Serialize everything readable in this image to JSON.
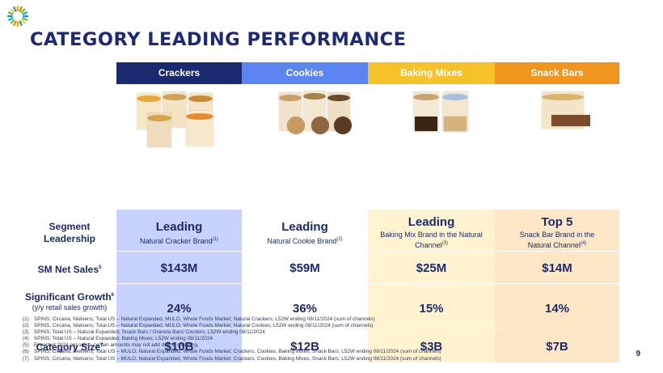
{
  "title": "CATEGORY LEADING PERFORMANCE",
  "headers": [
    {
      "label": "Crackers",
      "color": "#1b2a6e"
    },
    {
      "label": "Cookies",
      "color": "#5b85f0"
    },
    {
      "label": "Baking Mixes",
      "color": "#f6c22a"
    },
    {
      "label": "Snack Bars",
      "color": "#f0961f"
    }
  ],
  "column_bg": [
    "#c8d2ff",
    "#ffffff",
    "#fff4cf",
    "#fde7c6"
  ],
  "row_labels": {
    "segment": "Segment\nLeadership",
    "net_sales": "SM Net Sales",
    "net_sales_sup": "5",
    "growth": "Significant Growth",
    "growth_sup": "6",
    "growth_sub": "(y/y retail sales growth)",
    "category": "Category Size",
    "category_sup": "7"
  },
  "segment": [
    {
      "main": "Leading",
      "sub": "Natural Cracker Brand",
      "sup": "(1)"
    },
    {
      "main": "Leading",
      "sub": "Natural Cookie Brand",
      "sup": "(2)"
    },
    {
      "main": "Leading",
      "sub": "Baking Mix Brand in the Natural Channel",
      "sup": "(3)"
    },
    {
      "main": "Top 5",
      "sub": "Snack Bar Brand in the Natural Channel",
      "sup": "(4)"
    }
  ],
  "net_sales": [
    "$143M",
    "$59M",
    "$25M",
    "$14M"
  ],
  "growth": [
    "24%",
    "36%",
    "15%",
    "14%"
  ],
  "category_size": [
    "$10B",
    "$12B",
    "$3B",
    "$7B"
  ],
  "footnotes": [
    {
      "n": "(1)",
      "text": "SPINS, Circana, Nielsens; Total US – Natural Expanded, MULO, Whole Foods Market; Natural Crackers; L52W ending 08/11/2024 (sum of channels)"
    },
    {
      "n": "(2)",
      "text": "SPINS, Circana, Nielsens; Total US – Natural Expanded, MULO, Whole Foods Market; Natural Cookies; L52W ending 08/11/2024 (sum of channels)"
    },
    {
      "n": "(3)",
      "text": "SPINS; Total US – Natural Expanded, Snack Bars / Granola Bars/ Clusters; L52W ending 08/11/2024"
    },
    {
      "n": "(4)",
      "text": "SPINS; Total US – Natural Expanded, Baking Mixes; L52W ending 08/11/2024"
    },
    {
      "n": "(5)",
      "text": "Expected 2024 net sales; certain amounts may not add due to rounding."
    },
    {
      "n": "(6)",
      "text": "SPINS, Circana, Nielsens; Total US – MULO; Natural Expanded, Whole Foods Market; Crackers, Cookies, Baking Mixes, Snack Bars; L52W ending 08/11/2024 (sum of channels)"
    },
    {
      "n": "(7)",
      "text": "SPINS, Circana, Nielsens; Total US – MULO, Natural Expanded, Whole Foods Market; Crackers, Cookies, Baking Mixes, Snack Bars; L52W ending 08/11/2024 (sum of channels)"
    }
  ],
  "page_number": "9"
}
